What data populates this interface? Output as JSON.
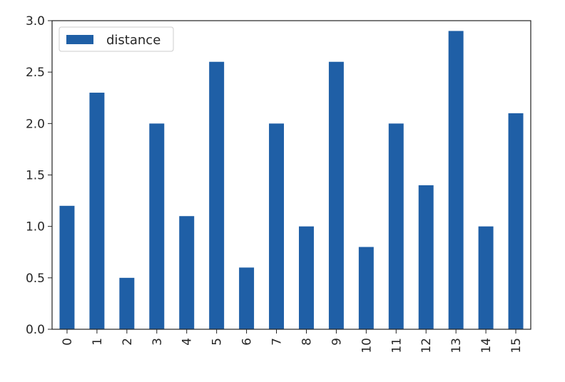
{
  "chart_data": {
    "type": "bar",
    "categories": [
      "0",
      "1",
      "2",
      "3",
      "4",
      "5",
      "6",
      "7",
      "8",
      "9",
      "10",
      "11",
      "12",
      "13",
      "14",
      "15"
    ],
    "series": [
      {
        "name": "distance",
        "values": [
          1.2,
          2.3,
          0.5,
          2.0,
          1.1,
          2.6,
          0.6,
          2.0,
          1.0,
          2.6,
          0.8,
          2.0,
          1.4,
          2.9,
          1.0,
          2.1
        ]
      }
    ],
    "title": "",
    "xlabel": "",
    "ylabel": "",
    "ylim": [
      0,
      3.0
    ],
    "yticks": [
      "0.0",
      "0.5",
      "1.0",
      "1.5",
      "2.0",
      "2.5",
      "3.0"
    ],
    "grid": false,
    "legend_position": "top-left",
    "colors": {
      "bar": "#1f5fa6",
      "axis": "#222222",
      "text": "#262626"
    }
  }
}
